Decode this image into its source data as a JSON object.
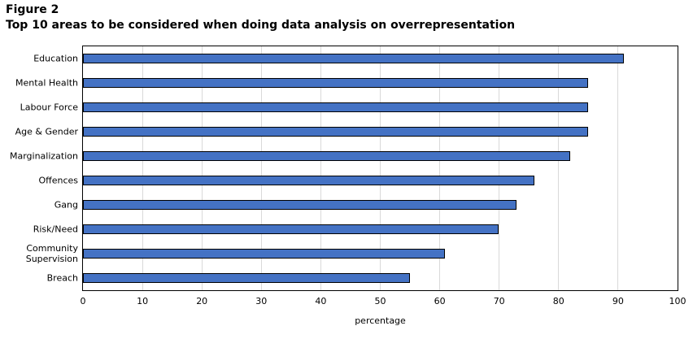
{
  "figure": {
    "label": "Figure 2",
    "title": "Top 10 areas to be considered when doing data analysis on overrepresentation"
  },
  "chart_data": {
    "type": "bar",
    "orientation": "horizontal",
    "title": "Top 10 areas to be considered when doing data analysis on overrepresentation",
    "categories": [
      "Education",
      "Mental Health",
      "Labour Force",
      "Age & Gender",
      "Marginalization",
      "Offences",
      "Gang",
      "Risk/Need",
      "Community Supervision",
      "Breach"
    ],
    "values": [
      91,
      85,
      85,
      85,
      82,
      76,
      73,
      70,
      61,
      55
    ],
    "xlabel": "percentage",
    "ylabel": "",
    "xlim": [
      0,
      100
    ],
    "xticks": [
      0,
      10,
      20,
      30,
      40,
      50,
      60,
      70,
      80,
      90,
      100
    ],
    "grid": "vertical",
    "legend": "none",
    "colors": {
      "bar_fill": "#4472C4",
      "bar_border": "#000000",
      "gridline": "#D9D9D9",
      "plot_border": "#000000",
      "background": "#FFFFFF",
      "text": "#000000"
    }
  }
}
